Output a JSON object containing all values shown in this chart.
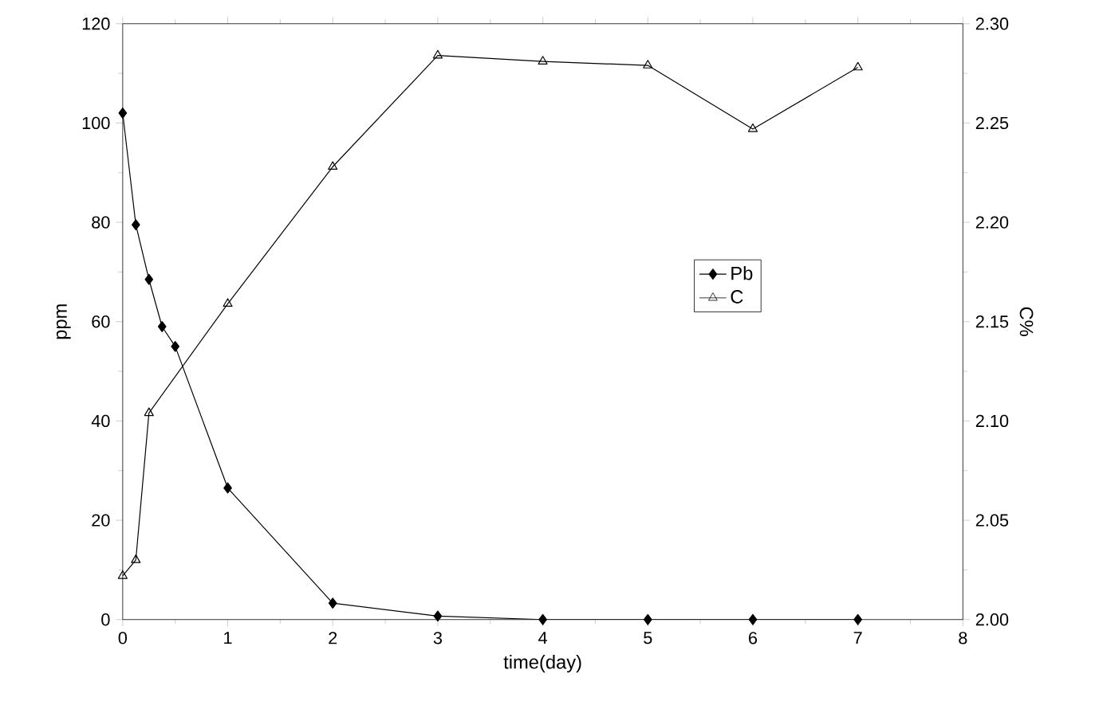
{
  "chart_data": {
    "type": "line",
    "xlabel": "time(day)",
    "ylabel": "ppm",
    "y2label": "C%",
    "xlim": [
      0,
      8
    ],
    "xticks": [
      0,
      1,
      2,
      3,
      4,
      5,
      6,
      7,
      8
    ],
    "ylim": [
      0,
      120
    ],
    "yticks": [
      0,
      20,
      40,
      60,
      80,
      100,
      120
    ],
    "y2lim": [
      2.0,
      2.3
    ],
    "y2ticks": [
      {
        "value": 2.0,
        "label": "2.00"
      },
      {
        "value": 2.05,
        "label": "2.05"
      },
      {
        "value": 2.1,
        "label": "2.10"
      },
      {
        "value": 2.15,
        "label": "2.15"
      },
      {
        "value": 2.2,
        "label": "2.20"
      },
      {
        "value": 2.25,
        "label": "2.25"
      },
      {
        "value": 2.3,
        "label": "2.30"
      }
    ],
    "legend": "center",
    "grid": false,
    "series": [
      {
        "name": "Pb",
        "color": "#000000",
        "marker": "diamond",
        "x": [
          0,
          0.125,
          0.25,
          0.375,
          0.5,
          1,
          2,
          3,
          4,
          5,
          6,
          7
        ],
        "values": [
          102,
          79.5,
          68.5,
          59,
          55,
          26.5,
          3.3,
          0.7,
          0,
          0,
          0,
          0
        ]
      },
      {
        "name": "C",
        "color": "#000000",
        "marker": "triangle",
        "axis": "y2",
        "x": [
          0,
          0.125,
          0.25,
          1,
          2,
          3,
          4,
          5,
          6,
          7
        ],
        "values": [
          2.022,
          2.03,
          2.104,
          2.159,
          2.228,
          2.284,
          2.281,
          2.279,
          2.247,
          2.278
        ]
      }
    ]
  }
}
